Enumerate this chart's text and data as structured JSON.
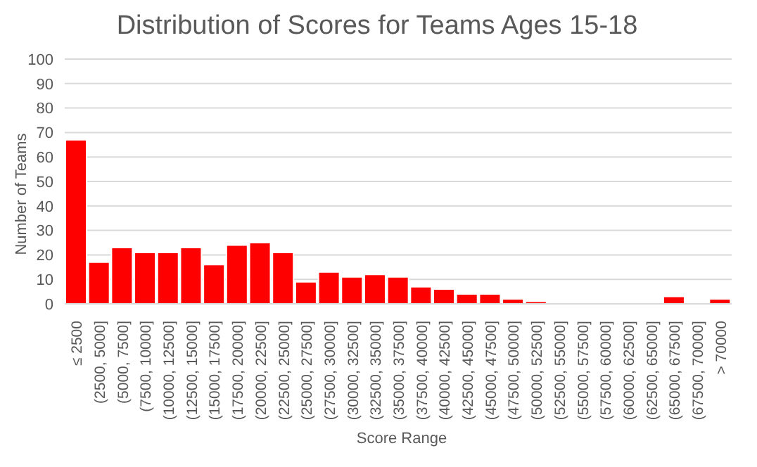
{
  "chart_data": {
    "type": "bar",
    "title": "Distribution of Scores for Teams Ages 15-18",
    "xlabel": "Score Range",
    "ylabel": "Number of Teams",
    "categories": [
      "≤ 2500",
      "(2500, 5000]",
      "(5000, 7500]",
      "(7500, 10000]",
      "(10000, 12500]",
      "(12500, 15000]",
      "(15000, 17500]",
      "(17500, 20000]",
      "(20000, 22500]",
      "(22500, 25000]",
      "(25000, 27500]",
      "(27500, 30000]",
      "(30000, 32500]",
      "(32500, 35000]",
      "(35000, 37500]",
      "(37500, 40000]",
      "(40000, 42500]",
      "(42500, 45000]",
      "(45000, 47500]",
      "(47500, 50000]",
      "(50000, 52500]",
      "(52500, 55000]",
      "(55000, 57500]",
      "(57500, 60000]",
      "(60000, 62500]",
      "(62500, 65000]",
      "(65000, 67500]",
      "(67500, 70000]",
      "> 70000"
    ],
    "values": [
      67,
      17,
      23,
      21,
      21,
      23,
      16,
      24,
      25,
      21,
      9,
      13,
      11,
      12,
      11,
      7,
      6,
      4,
      4,
      2,
      1,
      0,
      0,
      0,
      0,
      0,
      3,
      0,
      2
    ],
    "color": "#ff0000",
    "ylim": [
      0,
      100
    ],
    "yticks": [
      0,
      10,
      20,
      30,
      40,
      50,
      60,
      70,
      80,
      90,
      100
    ],
    "grid": "y",
    "legend": false
  }
}
